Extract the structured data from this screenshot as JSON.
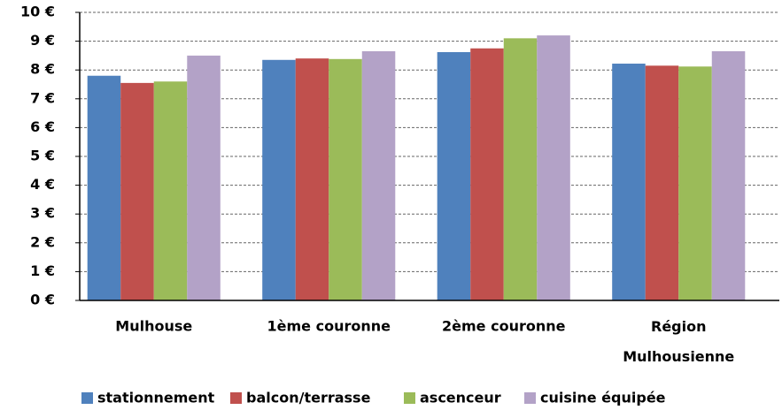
{
  "chart_data": {
    "type": "bar",
    "categories": [
      "Mulhouse",
      "1ème couronne",
      "2ème couronne",
      "Région Mulhousienne"
    ],
    "series": [
      {
        "name": "stationnement",
        "color": "#4f81bd",
        "values": [
          7.8,
          8.35,
          8.62,
          8.22
        ]
      },
      {
        "name": "balcon/terrasse",
        "color": "#c0504d",
        "values": [
          7.55,
          8.4,
          8.75,
          8.15
        ]
      },
      {
        "name": "ascenceur",
        "color": "#9bbb59",
        "values": [
          7.6,
          8.38,
          9.1,
          8.12
        ]
      },
      {
        "name": "cuisine équipée",
        "color": "#b3a2c7",
        "values": [
          8.5,
          8.65,
          9.2,
          8.65
        ]
      }
    ],
    "ylim": [
      0,
      10
    ],
    "yticks": [
      {
        "value": 0,
        "label": "0 €"
      },
      {
        "value": 1,
        "label": "1 €"
      },
      {
        "value": 2,
        "label": "2 €"
      },
      {
        "value": 3,
        "label": "3 €"
      },
      {
        "value": 4,
        "label": "4 €"
      },
      {
        "value": 5,
        "label": "5 €"
      },
      {
        "value": 6,
        "label": "6 €"
      },
      {
        "value": 7,
        "label": "7 €"
      },
      {
        "value": 8,
        "label": "8 €"
      },
      {
        "value": 9,
        "label": "9 €"
      },
      {
        "value": 10,
        "label": "10 €"
      }
    ],
    "grid": true,
    "legend": "bottom"
  }
}
